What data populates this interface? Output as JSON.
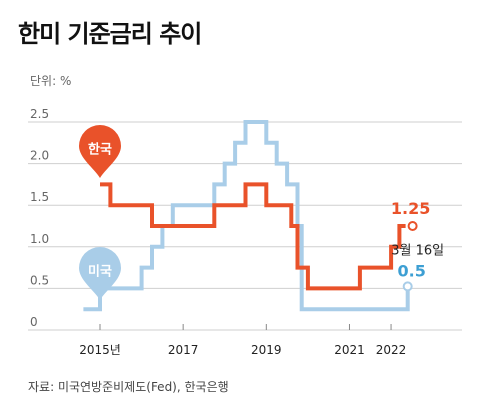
{
  "title": "한미 기준금리 추이",
  "unit_label": "단위: %",
  "source": "자료: 미국연방준비제도(Fed), 한국은행",
  "colors": {
    "korea": "#e9522a",
    "us": "#a9cde8",
    "us_label": "#3d9fd3",
    "grid": "#cfcfcf"
  },
  "chart_data": {
    "type": "line",
    "step": true,
    "x_ticks": [
      "2015년",
      "2017",
      "2019",
      "2021",
      "2022"
    ],
    "x_tick_values": [
      2015.0,
      2017.0,
      2019.0,
      2021.0,
      2022.0
    ],
    "y_ticks": [
      "0",
      "0.5",
      "1.0",
      "1.5",
      "2.0",
      "2.5"
    ],
    "y_tick_values": [
      0,
      0.5,
      1.0,
      1.5,
      2.0,
      2.5
    ],
    "xlim": [
      2015.0,
      2022.6
    ],
    "ylim": [
      0,
      2.5
    ],
    "series": [
      {
        "name": "한국",
        "color": "#e9522a",
        "end_label": "1.25",
        "points": [
          [
            2015.0,
            1.75
          ],
          [
            2015.25,
            1.75
          ],
          [
            2015.25,
            1.5
          ],
          [
            2016.25,
            1.5
          ],
          [
            2016.25,
            1.25
          ],
          [
            2017.75,
            1.25
          ],
          [
            2017.75,
            1.5
          ],
          [
            2018.5,
            1.5
          ],
          [
            2018.5,
            1.75
          ],
          [
            2019.0,
            1.75
          ],
          [
            2019.0,
            1.5
          ],
          [
            2019.6,
            1.5
          ],
          [
            2019.6,
            1.25
          ],
          [
            2019.75,
            1.25
          ],
          [
            2019.75,
            0.75
          ],
          [
            2020.0,
            0.75
          ],
          [
            2020.0,
            0.5
          ],
          [
            2021.25,
            0.5
          ],
          [
            2021.25,
            0.75
          ],
          [
            2022.0,
            0.75
          ],
          [
            2022.0,
            1.0
          ],
          [
            2022.2,
            1.0
          ],
          [
            2022.2,
            1.25
          ],
          [
            2022.35,
            1.25
          ]
        ]
      },
      {
        "name": "미국",
        "color": "#a9cde8",
        "end_label": "0.5",
        "date_label": "3월 16일",
        "points": [
          [
            2014.6,
            0.25
          ],
          [
            2015.0,
            0.25
          ],
          [
            2015.0,
            0.5
          ],
          [
            2016.0,
            0.5
          ],
          [
            2016.0,
            0.75
          ],
          [
            2016.25,
            0.75
          ],
          [
            2016.25,
            1.0
          ],
          [
            2016.5,
            1.0
          ],
          [
            2016.5,
            1.25
          ],
          [
            2016.75,
            1.25
          ],
          [
            2016.75,
            1.5
          ],
          [
            2017.75,
            1.5
          ],
          [
            2017.75,
            1.75
          ],
          [
            2018.0,
            1.75
          ],
          [
            2018.0,
            2.0
          ],
          [
            2018.25,
            2.0
          ],
          [
            2018.25,
            2.25
          ],
          [
            2018.5,
            2.25
          ],
          [
            2018.5,
            2.5
          ],
          [
            2019.0,
            2.5
          ],
          [
            2019.0,
            2.25
          ],
          [
            2019.25,
            2.25
          ],
          [
            2019.25,
            2.0
          ],
          [
            2019.5,
            2.0
          ],
          [
            2019.5,
            1.75
          ],
          [
            2019.75,
            1.75
          ],
          [
            2019.75,
            1.25
          ],
          [
            2019.85,
            1.25
          ],
          [
            2019.85,
            0.25
          ],
          [
            2022.4,
            0.25
          ],
          [
            2022.4,
            0.5
          ]
        ]
      }
    ]
  }
}
